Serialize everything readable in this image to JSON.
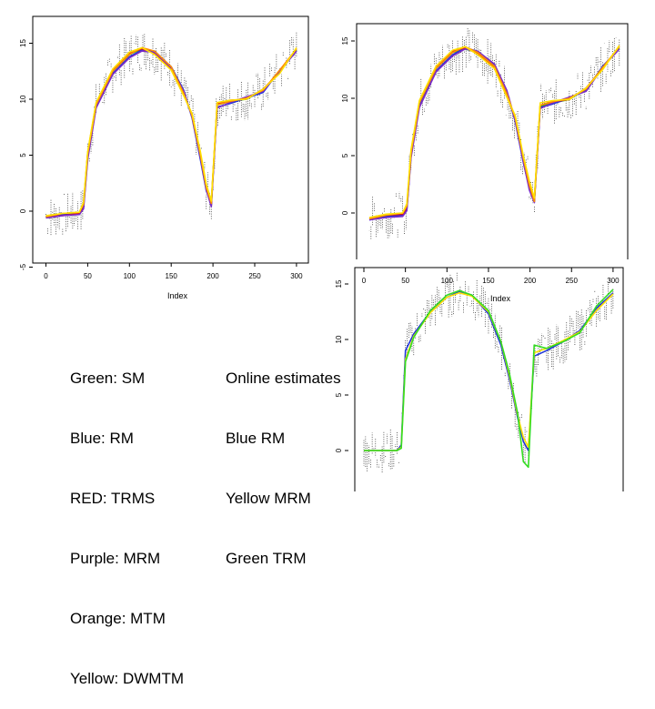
{
  "legends": {
    "left": [
      "Green: SM",
      "Blue: RM",
      "RED: TRMS",
      "Purple: MRM",
      "Orange: MTM",
      "Yellow: DWMTM"
    ],
    "right": [
      "Online estimates",
      "Blue RM",
      "Yellow MRM",
      "Green TRM"
    ]
  },
  "chart_data": [
    {
      "type": "line",
      "xlabel": "Index",
      "ylabel": "",
      "xlim": [
        0,
        310
      ],
      "ylim": [
        -5,
        15
      ],
      "xticks": [
        0,
        50,
        100,
        150,
        200,
        250,
        300
      ],
      "yticks": [
        -5,
        0,
        5,
        10,
        15
      ],
      "x": [
        0,
        20,
        40,
        45,
        50,
        60,
        80,
        100,
        115,
        130,
        150,
        165,
        175,
        185,
        192,
        198,
        205,
        220,
        240,
        260,
        280,
        300
      ],
      "series": [
        {
          "name": "SM",
          "color": "#22bb22",
          "values": [
            -0.5,
            -0.3,
            -0.2,
            0.5,
            5.0,
            9.5,
            12.5,
            14.0,
            14.5,
            14.2,
            12.8,
            10.5,
            8.5,
            5.0,
            2.0,
            0.5,
            9.5,
            9.8,
            10.0,
            10.8,
            12.5,
            14.4
          ]
        },
        {
          "name": "RM",
          "color": "#1e35d8",
          "values": [
            -0.6,
            -0.3,
            -0.3,
            0.3,
            4.8,
            9.3,
            12.3,
            13.8,
            14.4,
            14.3,
            12.9,
            10.8,
            8.3,
            4.6,
            1.8,
            0.8,
            9.3,
            9.6,
            10.1,
            10.6,
            12.6,
            14.3
          ]
        },
        {
          "name": "TRMS",
          "color": "#e01919",
          "values": [
            -0.5,
            -0.4,
            -0.2,
            0.6,
            5.2,
            9.6,
            12.6,
            14.1,
            14.5,
            14.1,
            12.7,
            10.4,
            8.6,
            5.1,
            2.2,
            0.6,
            9.6,
            9.9,
            10.0,
            10.9,
            12.4,
            14.5
          ]
        },
        {
          "name": "MRM",
          "color": "#7a2cc8",
          "values": [
            -0.6,
            -0.4,
            -0.3,
            0.2,
            4.6,
            9.2,
            12.2,
            13.7,
            14.3,
            14.2,
            12.8,
            10.7,
            8.4,
            4.8,
            1.9,
            0.4,
            9.2,
            9.7,
            10.2,
            10.7,
            12.5,
            14.3
          ]
        },
        {
          "name": "MTM",
          "color": "#ff8c00",
          "values": [
            -0.5,
            -0.2,
            -0.1,
            0.6,
            5.1,
            9.5,
            12.5,
            14.0,
            14.6,
            14.3,
            12.9,
            10.5,
            8.5,
            5.0,
            2.1,
            0.7,
            9.5,
            9.8,
            10.1,
            10.8,
            12.6,
            14.5
          ]
        },
        {
          "name": "DWMTM",
          "color": "#ffe000",
          "values": [
            -0.4,
            -0.2,
            -0.1,
            0.8,
            5.3,
            9.7,
            12.7,
            14.2,
            14.6,
            14.0,
            12.6,
            10.3,
            8.7,
            5.3,
            2.4,
            0.9,
            9.7,
            9.9,
            10.0,
            10.9,
            12.3,
            14.6
          ]
        }
      ]
    },
    {
      "type": "line",
      "xlabel": "Index",
      "ylabel": "",
      "xlim": [
        0,
        310
      ],
      "ylim": [
        -5,
        15
      ],
      "xticks": [
        0,
        50,
        100,
        150,
        200,
        250,
        300
      ],
      "yticks": [
        -5,
        0,
        5,
        10,
        15
      ],
      "x": [
        0,
        20,
        40,
        45,
        50,
        60,
        80,
        100,
        115,
        130,
        150,
        165,
        175,
        185,
        192,
        198,
        205,
        220,
        240,
        260,
        280,
        300
      ],
      "series": [
        {
          "name": "SM",
          "color": "#22bb22",
          "values": [
            -0.5,
            -0.2,
            -0.1,
            0.4,
            5.2,
            9.6,
            12.6,
            14.0,
            14.3,
            14.0,
            12.8,
            10.3,
            8.2,
            4.5,
            2.5,
            1.0,
            9.3,
            9.6,
            9.9,
            10.8,
            12.7,
            14.4
          ]
        },
        {
          "name": "RM",
          "color": "#1e35d8",
          "values": [
            -0.6,
            -0.3,
            -0.2,
            0.3,
            5.0,
            9.4,
            12.4,
            13.8,
            14.4,
            14.1,
            12.9,
            10.6,
            8.0,
            4.3,
            2.2,
            1.2,
            9.2,
            9.5,
            10.0,
            10.7,
            12.8,
            14.3
          ]
        },
        {
          "name": "TRMS",
          "color": "#e01919",
          "values": [
            -0.5,
            -0.2,
            -0.1,
            0.5,
            5.3,
            9.7,
            12.7,
            14.1,
            14.4,
            13.9,
            12.7,
            10.2,
            8.3,
            4.6,
            2.6,
            1.1,
            9.4,
            9.7,
            9.9,
            10.9,
            12.6,
            14.5
          ]
        },
        {
          "name": "MRM",
          "color": "#7a2cc8",
          "values": [
            -0.6,
            -0.4,
            -0.3,
            0.2,
            4.8,
            9.2,
            12.3,
            13.7,
            14.3,
            14.1,
            13.0,
            10.7,
            8.1,
            4.4,
            2.0,
            0.9,
            9.1,
            9.6,
            10.1,
            10.6,
            12.7,
            14.3
          ]
        },
        {
          "name": "MTM",
          "color": "#ff8c00",
          "values": [
            -0.5,
            -0.2,
            0.0,
            0.6,
            5.2,
            9.6,
            12.6,
            14.0,
            14.5,
            14.0,
            12.8,
            10.4,
            8.3,
            4.7,
            2.4,
            1.0,
            9.4,
            9.7,
            10.0,
            10.8,
            12.7,
            14.5
          ]
        },
        {
          "name": "DWMTM",
          "color": "#ffe000",
          "values": [
            -0.4,
            -0.1,
            0.0,
            0.8,
            5.5,
            9.8,
            12.8,
            14.2,
            14.5,
            13.8,
            12.6,
            10.1,
            8.5,
            4.9,
            2.8,
            1.3,
            9.6,
            9.8,
            9.9,
            10.9,
            12.5,
            14.6
          ]
        }
      ]
    },
    {
      "type": "line",
      "xlabel": "Index",
      "ylabel": "",
      "xlim": [
        0,
        300
      ],
      "ylim": [
        -5,
        15
      ],
      "xticks": [
        0,
        50,
        100,
        150,
        200,
        250,
        300
      ],
      "yticks": [
        0,
        5,
        10,
        15
      ],
      "x": [
        0,
        20,
        40,
        45,
        50,
        60,
        80,
        100,
        115,
        130,
        150,
        165,
        175,
        185,
        192,
        198,
        205,
        220,
        240,
        260,
        280,
        300
      ],
      "series": [
        {
          "name": "RM",
          "color": "#1e35d8",
          "values": [
            0.0,
            0.0,
            0.0,
            0.5,
            9.0,
            10.5,
            12.5,
            13.8,
            14.3,
            14.0,
            12.3,
            9.5,
            6.5,
            3.0,
            0.8,
            0.0,
            8.5,
            9.0,
            9.8,
            10.8,
            12.8,
            14.2
          ]
        },
        {
          "name": "MRM",
          "color": "#ffe000",
          "values": [
            0.0,
            0.0,
            0.0,
            0.3,
            8.2,
            10.3,
            12.4,
            13.8,
            14.2,
            13.9,
            12.5,
            9.8,
            6.8,
            3.2,
            1.2,
            0.3,
            8.8,
            9.2,
            9.9,
            10.7,
            12.6,
            14.1
          ]
        },
        {
          "name": "TRM",
          "color": "#33dd22",
          "values": [
            0.0,
            0.0,
            0.0,
            0.2,
            8.0,
            10.2,
            12.6,
            14.0,
            14.4,
            14.0,
            12.6,
            9.8,
            7.0,
            3.4,
            -1.0,
            -1.5,
            9.5,
            9.2,
            9.8,
            10.6,
            13.0,
            14.5
          ]
        }
      ]
    }
  ]
}
